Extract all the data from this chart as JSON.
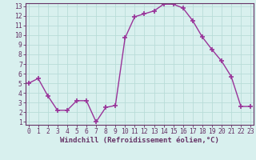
{
  "x": [
    0,
    1,
    2,
    3,
    4,
    5,
    6,
    7,
    8,
    9,
    10,
    11,
    12,
    13,
    14,
    15,
    16,
    17,
    18,
    19,
    20,
    21,
    22,
    23
  ],
  "y": [
    5.0,
    5.5,
    3.7,
    2.2,
    2.2,
    3.2,
    3.2,
    1.0,
    2.5,
    2.7,
    9.7,
    11.9,
    12.2,
    12.5,
    13.2,
    13.2,
    12.8,
    11.5,
    9.8,
    8.5,
    7.3,
    5.7,
    2.6,
    2.6
  ],
  "xlim": [
    0,
    23
  ],
  "ylim": [
    1,
    13
  ],
  "yticks": [
    1,
    2,
    3,
    4,
    5,
    6,
    7,
    8,
    9,
    10,
    11,
    12,
    13
  ],
  "xticks": [
    0,
    1,
    2,
    3,
    4,
    5,
    6,
    7,
    8,
    9,
    10,
    11,
    12,
    13,
    14,
    15,
    16,
    17,
    18,
    19,
    20,
    21,
    22,
    23
  ],
  "xlabel": "Windchill (Refroidissement éolien,°C)",
  "line_color": "#993399",
  "marker": "+",
  "marker_size": 5,
  "background_color": "#d8f0ee",
  "grid_color": "#b8dcd8",
  "axis_color": "#663366",
  "tick_color": "#663366",
  "label_fontsize": 6.5,
  "tick_fontsize": 5.8,
  "linewidth": 1.0
}
